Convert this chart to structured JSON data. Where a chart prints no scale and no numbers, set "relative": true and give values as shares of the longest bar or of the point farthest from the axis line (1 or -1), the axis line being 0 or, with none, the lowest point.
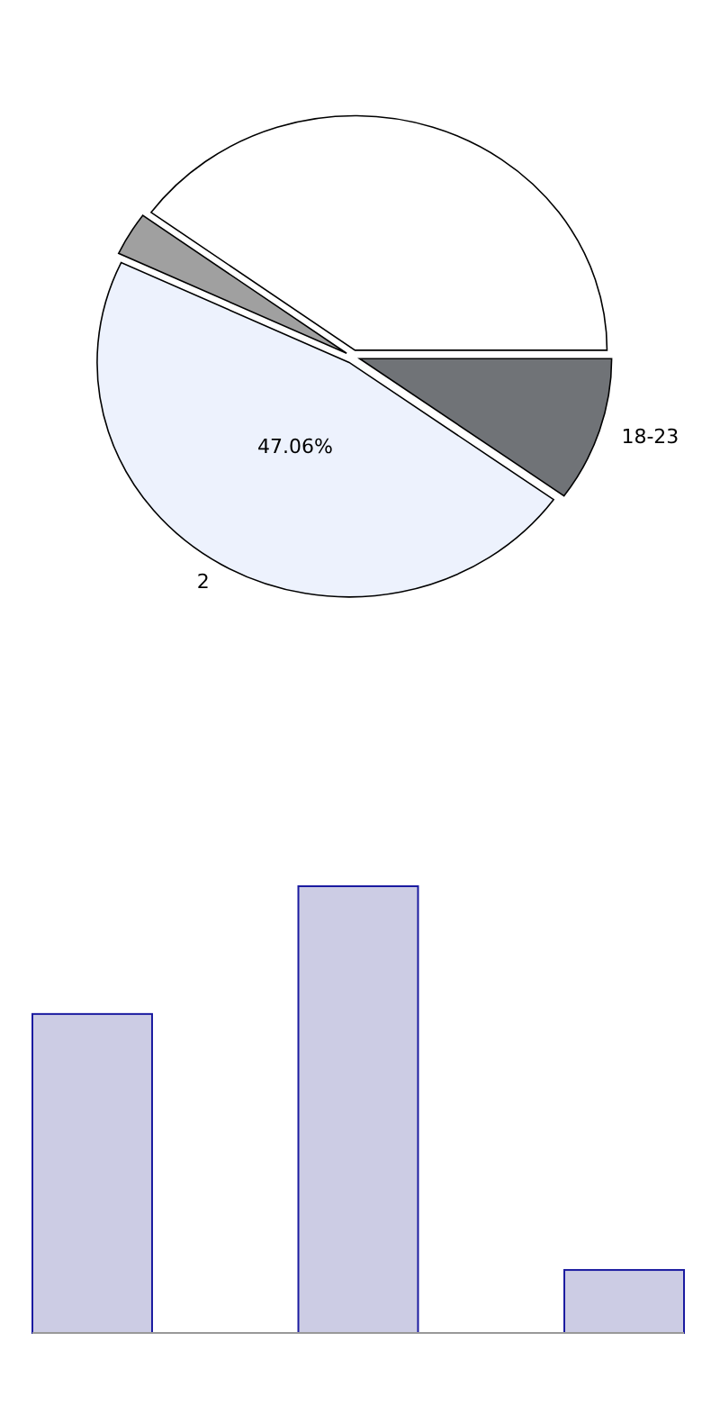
{
  "chart_data": [
    {
      "type": "pie",
      "categories": [
        null,
        null,
        "2",
        "18-23"
      ],
      "values": [
        40,
        3,
        47.06,
        9.94
      ],
      "colors": [
        "#ffffff",
        "#a0a0a0",
        "#edf2fd",
        "#707377"
      ],
      "value_labels": [
        null,
        null,
        "47.06%",
        null
      ]
    },
    {
      "type": "bar",
      "relative": true,
      "categories": [
        null,
        null,
        null
      ],
      "values": [
        0.714,
        1,
        0.141
      ],
      "color": "#ccccE4"
    }
  ]
}
